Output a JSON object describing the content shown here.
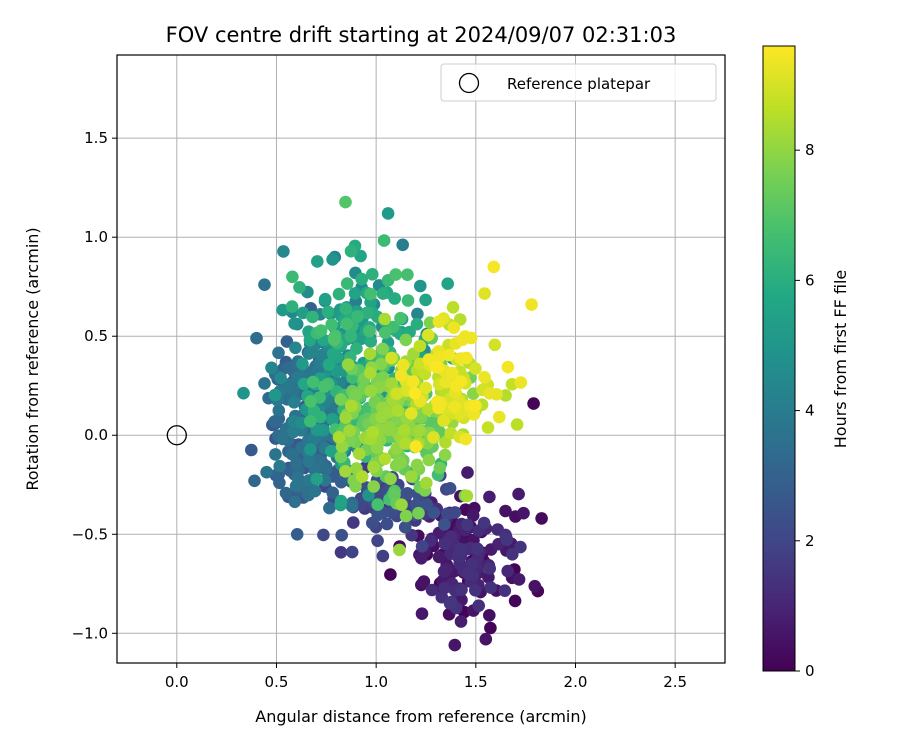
{
  "chart_data": {
    "type": "scatter",
    "title": "FOV centre drift starting at 2024/09/07 02:31:03",
    "xlabel": "Angular distance from reference (arcmin)",
    "ylabel": "Rotation from reference (arcmin)",
    "xlim": [
      -0.3,
      2.75
    ],
    "ylim": [
      -1.15,
      1.92
    ],
    "x_ticks": [
      0.0,
      0.5,
      1.0,
      1.5,
      2.0,
      2.5
    ],
    "x_tick_labels": [
      "0.0",
      "0.5",
      "1.0",
      "1.5",
      "2.0",
      "2.5"
    ],
    "y_ticks": [
      -1.0,
      -0.5,
      0.0,
      0.5,
      1.0,
      1.5
    ],
    "y_tick_labels": [
      "−1.0",
      "−0.5",
      "0.0",
      "0.5",
      "1.0",
      "1.5"
    ],
    "grid": true,
    "legend": {
      "placement": "top-right",
      "entries": [
        {
          "label": "Reference platepar",
          "marker": "open-circle"
        }
      ]
    },
    "reference_point": {
      "x": 0.0,
      "y": 0.0
    },
    "colorbar": {
      "label": "Hours from first FF file",
      "colormap": "viridis",
      "range": [
        0,
        9.6
      ],
      "ticks": [
        0,
        2,
        4,
        6,
        8
      ],
      "tick_labels": [
        "0",
        "2",
        "4",
        "6",
        "8"
      ]
    },
    "clusters": [
      {
        "hours": [
          0.0,
          1.5
        ],
        "x_mean": 1.45,
        "y_mean": -0.62,
        "x_sd": 0.14,
        "y_sd": 0.16,
        "count": 150
      },
      {
        "hours": [
          1.5,
          2.5
        ],
        "x_mean": 1.08,
        "y_mean": -0.38,
        "x_sd": 0.14,
        "y_sd": 0.1,
        "count": 80
      },
      {
        "hours": [
          2.5,
          4.0
        ],
        "x_mean": 0.68,
        "y_mean": 0.05,
        "x_sd": 0.1,
        "y_sd": 0.22,
        "count": 230
      },
      {
        "hours": [
          4.0,
          5.5
        ],
        "x_mean": 0.85,
        "y_mean": 0.35,
        "x_sd": 0.17,
        "y_sd": 0.25,
        "count": 150
      },
      {
        "hours": [
          5.5,
          7.0
        ],
        "x_mean": 0.98,
        "y_mean": 0.32,
        "x_sd": 0.17,
        "y_sd": 0.28,
        "count": 150
      },
      {
        "hours": [
          7.0,
          8.5
        ],
        "x_mean": 1.1,
        "y_mean": 0.06,
        "x_sd": 0.15,
        "y_sd": 0.18,
        "count": 230
      },
      {
        "hours": [
          8.5,
          9.6
        ],
        "x_mean": 1.38,
        "y_mean": 0.27,
        "x_sd": 0.14,
        "y_sd": 0.16,
        "count": 110
      }
    ],
    "notable_points": [
      {
        "x": 1.06,
        "y": 1.12,
        "hours": 5.2
      },
      {
        "x": 1.59,
        "y": 0.85,
        "hours": 9.5
      },
      {
        "x": 1.78,
        "y": 0.66,
        "hours": 9.4
      },
      {
        "x": 1.79,
        "y": 0.16,
        "hours": 0.1
      },
      {
        "x": 1.83,
        "y": -0.42,
        "hours": 0.3
      },
      {
        "x": 1.55,
        "y": -1.03,
        "hours": 0.5
      },
      {
        "x": 0.88,
        "y": -0.59,
        "hours": 1.9
      },
      {
        "x": 0.58,
        "y": 0.8,
        "hours": 6.5
      },
      {
        "x": 0.44,
        "y": 0.76,
        "hours": 3.6
      },
      {
        "x": 0.39,
        "y": -0.23,
        "hours": 3.2
      },
      {
        "x": 0.4,
        "y": 0.49,
        "hours": 3.4
      }
    ],
    "approx_point_count": 1100
  }
}
